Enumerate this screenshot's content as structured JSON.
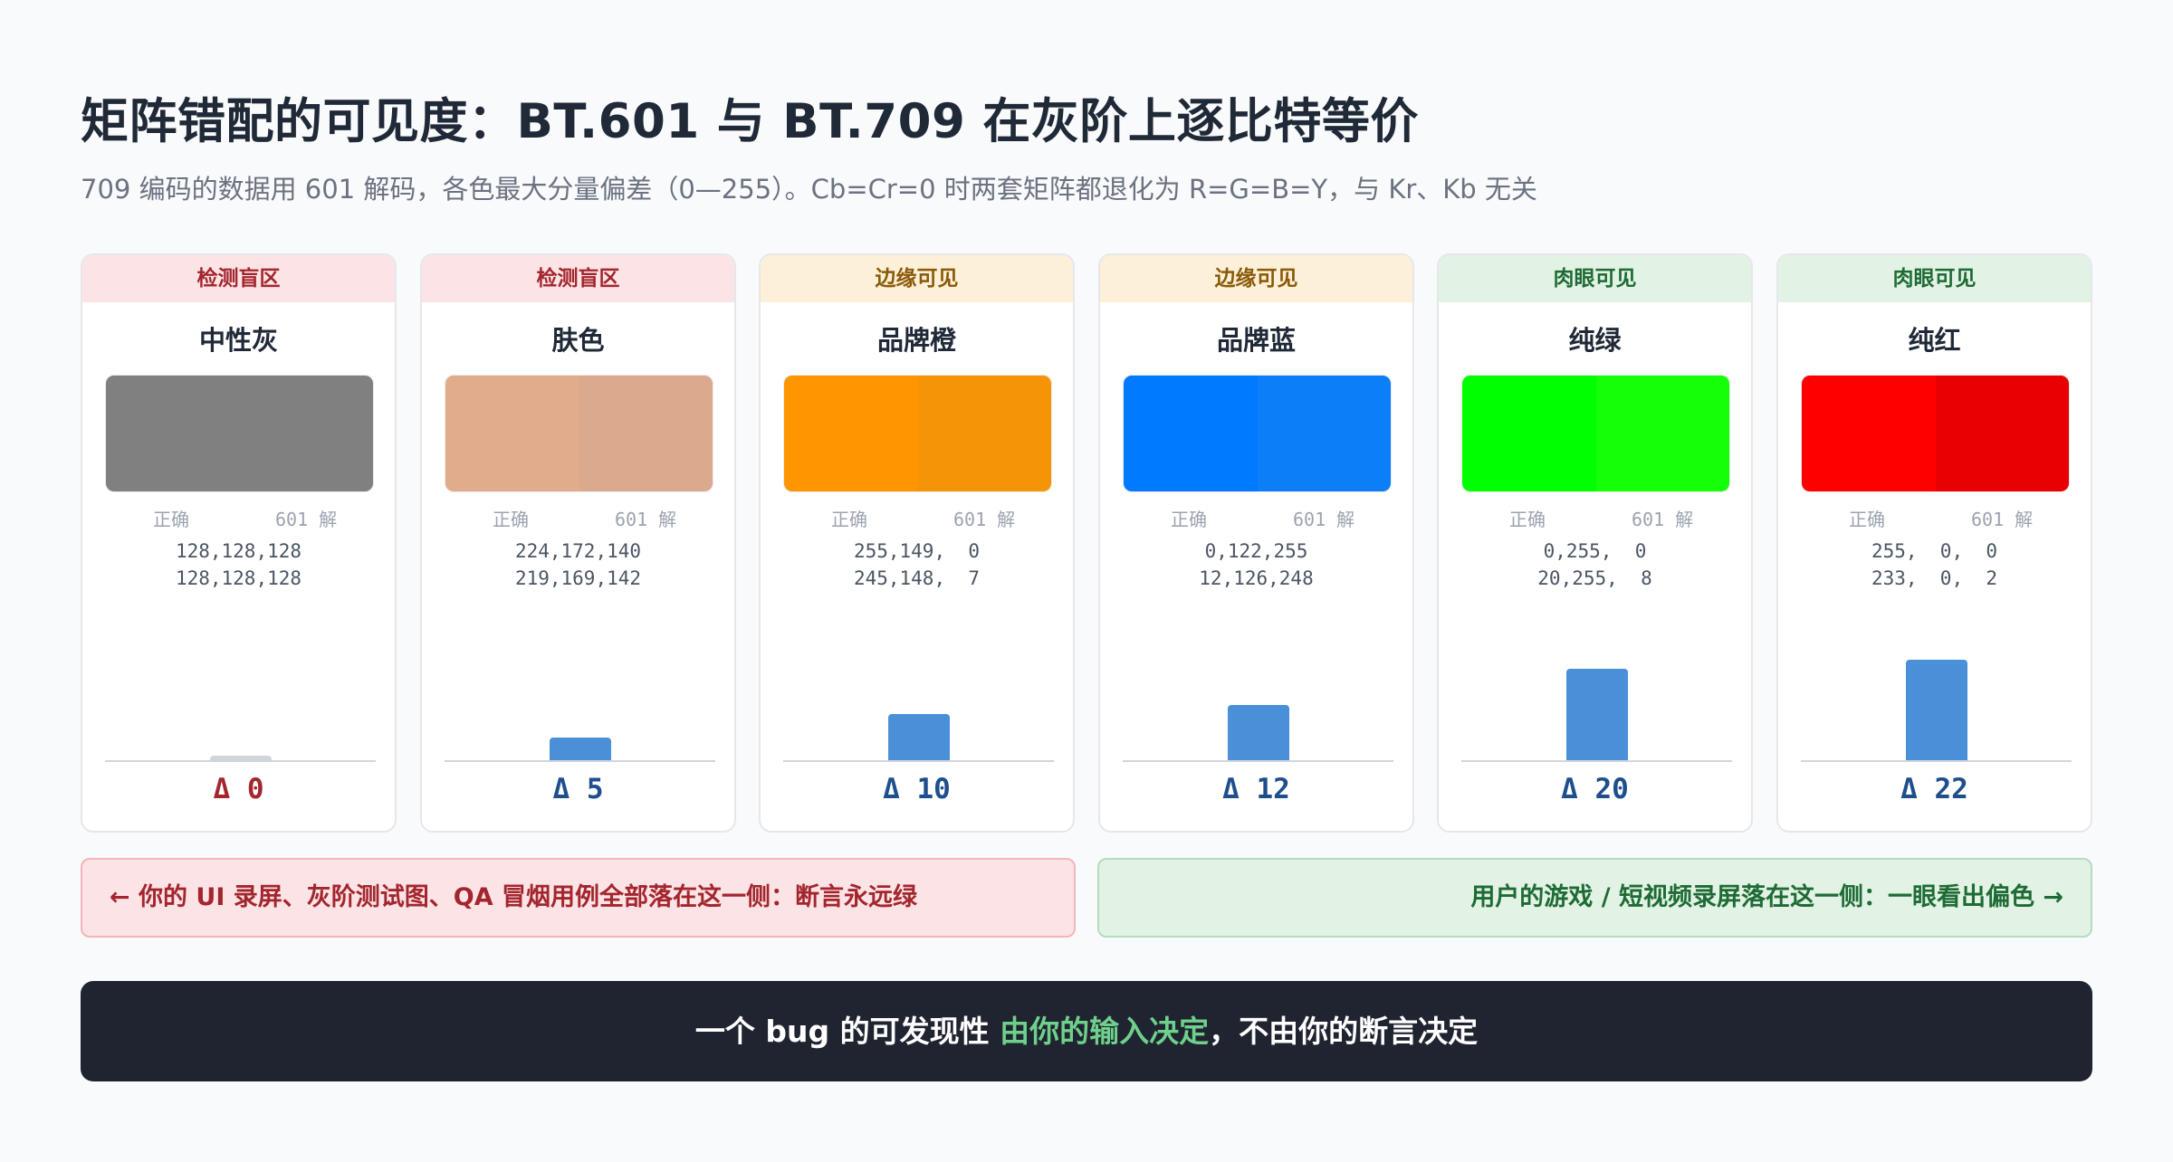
{
  "title": "矩阵错配的可见度：BT.601 与 BT.709 在灰阶上逐比特等价",
  "subtitle": "709 编码的数据用 601 解码，各色最大分量偏差（0—255）。Cb=Cr=0 时两套矩阵都退化为 R=G=B=Y，与 Kr、Kb 无关",
  "labels": {
    "correct": "正确",
    "decoded": "601 解"
  },
  "chart_data": {
    "type": "bar",
    "categories": [
      "中性灰",
      "肤色",
      "品牌橙",
      "品牌蓝",
      "纯绿",
      "纯红"
    ],
    "values": [
      0,
      5,
      10,
      12,
      20,
      22
    ],
    "ylim": [
      0,
      25
    ],
    "ylabel": "",
    "xlabel": ""
  },
  "cards": [
    {
      "tier": "检测盲区",
      "tier_class": "blind",
      "name": "中性灰",
      "correct_rgb": "128,128,128",
      "decoded_rgb": "128,128,128",
      "correct_hex": "#808080",
      "decoded_hex": "#808080",
      "delta_label": "Δ 0",
      "delta": 0
    },
    {
      "tier": "检测盲区",
      "tier_class": "blind",
      "name": "肤色",
      "correct_rgb": "224,172,140",
      "decoded_rgb": "219,169,142",
      "correct_hex": "#e0ac8c",
      "decoded_hex": "#dba98e",
      "delta_label": "Δ 5",
      "delta": 5
    },
    {
      "tier": "边缘可见",
      "tier_class": "edge",
      "name": "品牌橙",
      "correct_rgb": "255,149,  0",
      "decoded_rgb": "245,148,  7",
      "correct_hex": "#ff9500",
      "decoded_hex": "#f59407",
      "delta_label": "Δ 10",
      "delta": 10
    },
    {
      "tier": "边缘可见",
      "tier_class": "edge",
      "name": "品牌蓝",
      "correct_rgb": "0,122,255",
      "decoded_rgb": "12,126,248",
      "correct_hex": "#007aff",
      "decoded_hex": "#0c7ef8",
      "delta_label": "Δ 12",
      "delta": 12
    },
    {
      "tier": "肉眼可见",
      "tier_class": "visible",
      "name": "纯绿",
      "correct_rgb": "0,255,  0",
      "decoded_rgb": "20,255,  8",
      "correct_hex": "#00ff00",
      "decoded_hex": "#14ff08",
      "delta_label": "Δ 20",
      "delta": 20
    },
    {
      "tier": "肉眼可见",
      "tier_class": "visible",
      "name": "纯红",
      "correct_rgb": "255,  0,  0",
      "decoded_rgb": "233,  0,  2",
      "correct_hex": "#ff0000",
      "decoded_hex": "#e90002",
      "delta_label": "Δ 22",
      "delta": 22
    }
  ],
  "callouts": {
    "left": "← 你的 UI 录屏、灰阶测试图、QA 冒烟用例全部落在这一侧：断言永远绿",
    "right": "用户的游戏 / 短视频录屏落在这一侧：一眼看出偏色 →"
  },
  "footer": {
    "prefix": "一个 bug 的可发现性 ",
    "highlight": "由你的输入决定",
    "suffix": "，不由你的断言决定"
  },
  "colors": {
    "bar": "#4a90d9",
    "bar_zero": "#d1d5db",
    "footer_bg": "#1f2430",
    "footer_highlight": "#6fd08c"
  }
}
